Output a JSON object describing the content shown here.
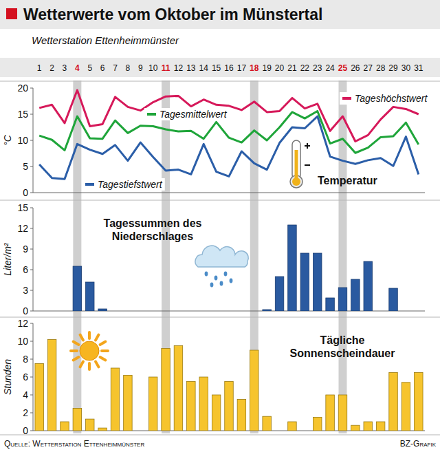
{
  "header": {
    "title": "Wetterwerte vom Oktober im Münstertal",
    "subtitle": "Wetterstation Ettenheimmünster"
  },
  "highlighted_days": [
    "4",
    "11",
    "18",
    "25"
  ],
  "chart_data": [
    {
      "type": "line",
      "annotation": "Temperatur",
      "y_label": "°C",
      "categories": [
        "1",
        "2",
        "3",
        "4",
        "5",
        "6",
        "7",
        "8",
        "9",
        "10",
        "11",
        "12",
        "13",
        "14",
        "15",
        "16",
        "17",
        "18",
        "19",
        "20",
        "21",
        "22",
        "23",
        "24",
        "25",
        "26",
        "27",
        "28",
        "29",
        "30",
        "31"
      ],
      "series": [
        {
          "name": "Tageshöchstwert",
          "color": "#d6195a",
          "values": [
            16.2,
            16.8,
            13.3,
            19.6,
            12.7,
            13.1,
            18.3,
            16.4,
            15.7,
            17.3,
            18.4,
            18.5,
            16.5,
            17.8,
            16.8,
            16.6,
            15.8,
            17.4,
            15.4,
            15.6,
            18.1,
            16.1,
            17.0,
            11.8,
            14.6,
            9.8,
            11.0,
            14.0,
            16.4,
            16.0,
            15.0
          ]
        },
        {
          "name": "Tagesmittelwert",
          "color": "#1fa53a",
          "values": [
            10.9,
            10.1,
            8.1,
            14.6,
            10.4,
            10.3,
            13.8,
            11.4,
            12.8,
            12.7,
            12.1,
            11.7,
            11.8,
            10.3,
            13.5,
            10.5,
            9.6,
            11.9,
            10.0,
            12.5,
            15.4,
            14.2,
            15.6,
            9.4,
            10.3,
            7.6,
            8.6,
            10.6,
            10.8,
            13.4,
            9.2
          ]
        },
        {
          "name": "Tagestiefstwert",
          "color": "#2b5ea8",
          "values": [
            5.4,
            2.8,
            2.6,
            9.3,
            8.2,
            7.4,
            9.1,
            6.1,
            9.6,
            6.8,
            4.2,
            4.4,
            3.5,
            9.3,
            4.0,
            3.1,
            7.9,
            5.6,
            4.4,
            9.5,
            12.5,
            12.3,
            14.6,
            6.9,
            6.1,
            5.5,
            6.2,
            6.6,
            5.1,
            10.7,
            3.5
          ]
        }
      ],
      "ylim": [
        0,
        20
      ],
      "yticks": [
        0,
        5,
        10,
        15,
        20
      ],
      "grid": false,
      "tick_labels": true
    },
    {
      "type": "bar",
      "title": "Tagessummen des Niederschlages",
      "y_label": "Liter/m²",
      "categories": [
        "1",
        "2",
        "3",
        "4",
        "5",
        "6",
        "7",
        "8",
        "9",
        "10",
        "11",
        "12",
        "13",
        "14",
        "15",
        "16",
        "17",
        "18",
        "19",
        "20",
        "21",
        "22",
        "23",
        "24",
        "25",
        "26",
        "27",
        "28",
        "29",
        "30",
        "31"
      ],
      "values": [
        0,
        0,
        0,
        6.5,
        4.2,
        0.3,
        0,
        0,
        0,
        0,
        0,
        0,
        0,
        0,
        0,
        0,
        0,
        0,
        0.2,
        5.0,
        12.5,
        8.4,
        8.4,
        1.9,
        3.4,
        4.6,
        7.2,
        0,
        3.3,
        0,
        0
      ],
      "color": "#2a5aa0",
      "ylim": [
        0,
        15
      ],
      "yticks": [
        0,
        3,
        6,
        9,
        12,
        15
      ],
      "grid": false,
      "tick_labels": "y"
    },
    {
      "type": "bar",
      "title": "Tägliche Sonnenscheindauer",
      "y_label": "Stunden",
      "categories": [
        "1",
        "2",
        "3",
        "4",
        "5",
        "6",
        "7",
        "8",
        "9",
        "10",
        "11",
        "12",
        "13",
        "14",
        "15",
        "16",
        "17",
        "18",
        "19",
        "20",
        "21",
        "22",
        "23",
        "24",
        "25",
        "26",
        "27",
        "28",
        "29",
        "30",
        "31"
      ],
      "values": [
        7.5,
        10.2,
        1.0,
        2.5,
        1.3,
        0.3,
        7.0,
        6.2,
        0,
        6.0,
        9.2,
        9.5,
        5.5,
        6.0,
        4.0,
        5.5,
        3.5,
        9.0,
        1.6,
        0,
        1.0,
        0,
        1.5,
        4.0,
        4.0,
        0.6,
        1.0,
        1.0,
        6.5,
        5.4,
        6.5
      ],
      "color": "#f6c42d",
      "ylim": [
        0,
        12
      ],
      "yticks": [
        0,
        2,
        4,
        6,
        8,
        10,
        12
      ],
      "grid": false,
      "tick_labels": "y"
    }
  ],
  "footer": {
    "source": "Quelle: Wetterstation Ettenheimmünster",
    "credit": "BZ-Grafik"
  }
}
